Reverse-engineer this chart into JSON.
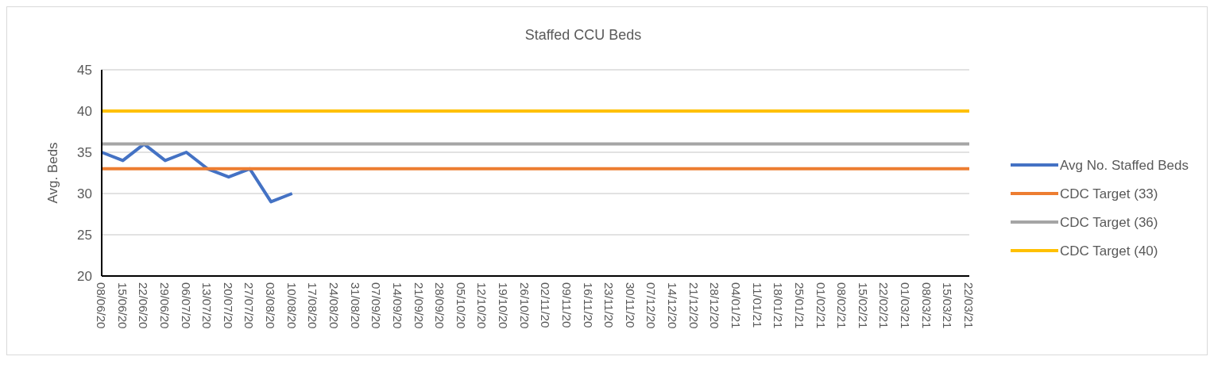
{
  "chart_data": {
    "type": "line",
    "title": "Staffed CCU Beds",
    "ylabel": "Avg. Beds",
    "categories": [
      "08/06/20",
      "15/06/20",
      "22/06/20",
      "29/06/20",
      "06/07/20",
      "13/07/20",
      "20/07/20",
      "27/07/20",
      "03/08/20",
      "10/08/20",
      "17/08/20",
      "24/08/20",
      "31/08/20",
      "07/09/20",
      "14/09/20",
      "21/09/20",
      "28/09/20",
      "05/10/20",
      "12/10/20",
      "19/10/20",
      "26/10/20",
      "02/11/20",
      "09/11/20",
      "16/11/20",
      "23/11/20",
      "30/11/20",
      "07/12/20",
      "14/12/20",
      "21/12/20",
      "28/12/20",
      "04/01/21",
      "11/01/21",
      "18/01/21",
      "25/01/21",
      "01/02/21",
      "08/02/21",
      "15/02/21",
      "22/02/21",
      "01/03/21",
      "08/03/21",
      "15/03/21",
      "22/03/21"
    ],
    "series": [
      {
        "name": "Avg No. Staffed Beds",
        "color": "#4472c4",
        "values": [
          35,
          34,
          36,
          34,
          35,
          33,
          32,
          33,
          29,
          30,
          null,
          null,
          null,
          null,
          null,
          null,
          null,
          null,
          null,
          null,
          null,
          null,
          null,
          null,
          null,
          null,
          null,
          null,
          null,
          null,
          null,
          null,
          null,
          null,
          null,
          null,
          null,
          null,
          null,
          null,
          null,
          null
        ]
      },
      {
        "name": "CDC Target (33)",
        "color": "#ed7d31",
        "values": [
          33,
          33,
          33,
          33,
          33,
          33,
          33,
          33,
          33,
          33,
          33,
          33,
          33,
          33,
          33,
          33,
          33,
          33,
          33,
          33,
          33,
          33,
          33,
          33,
          33,
          33,
          33,
          33,
          33,
          33,
          33,
          33,
          33,
          33,
          33,
          33,
          33,
          33,
          33,
          33,
          33,
          33
        ]
      },
      {
        "name": "CDC Target (36)",
        "color": "#a5a5a5",
        "values": [
          36,
          36,
          36,
          36,
          36,
          36,
          36,
          36,
          36,
          36,
          36,
          36,
          36,
          36,
          36,
          36,
          36,
          36,
          36,
          36,
          36,
          36,
          36,
          36,
          36,
          36,
          36,
          36,
          36,
          36,
          36,
          36,
          36,
          36,
          36,
          36,
          36,
          36,
          36,
          36,
          36,
          36
        ]
      },
      {
        "name": "CDC Target (40)",
        "color": "#ffc000",
        "values": [
          40,
          40,
          40,
          40,
          40,
          40,
          40,
          40,
          40,
          40,
          40,
          40,
          40,
          40,
          40,
          40,
          40,
          40,
          40,
          40,
          40,
          40,
          40,
          40,
          40,
          40,
          40,
          40,
          40,
          40,
          40,
          40,
          40,
          40,
          40,
          40,
          40,
          40,
          40,
          40,
          40,
          40
        ]
      }
    ],
    "ylim": [
      20,
      45
    ],
    "yticks": [
      20,
      25,
      30,
      35,
      40,
      45
    ],
    "grid": "y",
    "legend": "right",
    "marker": "none",
    "line_style": "solid"
  }
}
